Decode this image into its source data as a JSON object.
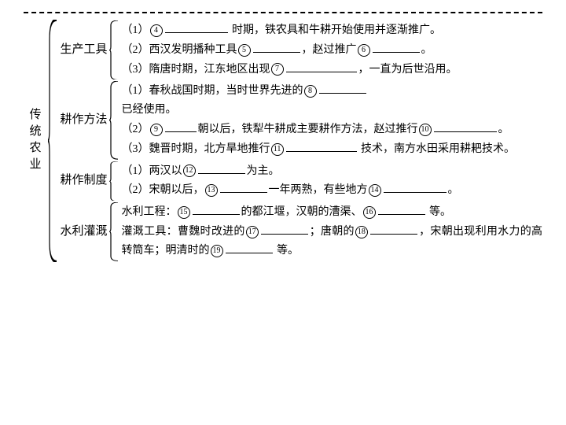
{
  "colors": {
    "line": "#000000",
    "text": "#000000",
    "bg": "#ffffff"
  },
  "root_label": "传统农业",
  "sections": [
    {
      "label": "生产工具",
      "items": [
        {
          "pre": "（1）",
          "num": "④",
          "tail": " 时期，铁农具和牛耕开始使用并逐渐推广。",
          "blank_w": "w80"
        },
        {
          "pre": "（2）西汉发明播种工具",
          "num": "⑤",
          "mid": "，赵过推广",
          "num2": "⑥",
          "tail2": "。",
          "blank_w": "w60",
          "blank2_w": "w60"
        },
        {
          "pre": "（3）隋唐时期，江东地区出现",
          "num": "⑦",
          "tail": "，一直为后世沿用。",
          "blank_w": "w90"
        }
      ]
    },
    {
      "label": "耕作方法",
      "items": [
        {
          "pre": "（1）春秋战国时期，当时世界先进的",
          "num": "⑧",
          "tail": "已经使用。",
          "blank_w": "w60",
          "break_before_tail": true
        },
        {
          "pre": "（2）",
          "num": "⑨",
          "mid": "朝以后，铁犁牛耕成主要耕作方法，赵过推行",
          "num2": "⑩",
          "tail2": "。",
          "blank_w": "w40",
          "blank2_w": "w80"
        },
        {
          "pre": "（3）魏晋时期，北方旱地推行",
          "num": "⑪",
          "tail": " 技术，南方水田采用耕耙技术。",
          "blank_w": "w90"
        }
      ]
    },
    {
      "label": "耕作制度",
      "items": [
        {
          "pre": "（1）两汉以",
          "num": "⑫",
          "tail": "为主。",
          "blank_w": "w60"
        },
        {
          "pre": "（2）宋朝以后，",
          "num": "⑬",
          "mid": "一年两熟，有些地方",
          "num2": "⑭",
          "tail2": "。",
          "blank_w": "w60",
          "blank2_w": "w80"
        }
      ]
    },
    {
      "label": "水利灌溉",
      "items": [
        {
          "pre": "水利工程：",
          "num": "⑮",
          "mid": "的都江堰，汉朝的漕渠、",
          "num2": "⑯",
          "tail2": " 等。",
          "blank_w": "w60",
          "blank2_w": "w60"
        },
        {
          "pre": "灌溉工具：曹魏时改进的",
          "num": "⑰",
          "mid": "；唐朝的",
          "num2": "⑱",
          "tail2": "，宋朝出现利用水力的高转筒车；明清时的",
          "num3": "⑲",
          "tail3": " 等。",
          "blank_w": "w60",
          "blank2_w": "w60",
          "blank3_w": "w60"
        }
      ]
    }
  ]
}
